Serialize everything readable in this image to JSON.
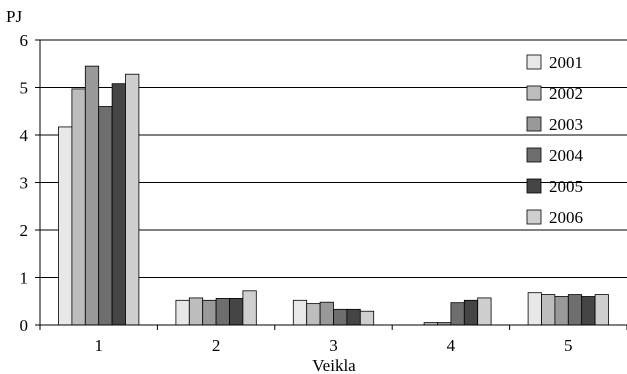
{
  "chart_data": {
    "type": "bar",
    "title": "",
    "ylabel": "PJ",
    "xlabel": "Veikla",
    "categories": [
      "1",
      "2",
      "3",
      "4",
      "5"
    ],
    "ylim": [
      0,
      6
    ],
    "yticks": [
      "0",
      "1",
      "2",
      "3",
      "4",
      "5",
      "6"
    ],
    "grid": "horizontal",
    "legend": "right",
    "series": [
      {
        "name": "2001",
        "values": [
          4.17,
          0.52,
          0.52,
          0.0,
          0.68
        ],
        "color": "#e8e8e8"
      },
      {
        "name": "2002",
        "values": [
          4.97,
          0.57,
          0.45,
          0.05,
          0.64
        ],
        "color": "#bdbdbd"
      },
      {
        "name": "2003",
        "values": [
          5.45,
          0.52,
          0.48,
          0.05,
          0.6
        ],
        "color": "#999999"
      },
      {
        "name": "2004",
        "values": [
          4.6,
          0.56,
          0.33,
          0.47,
          0.64
        ],
        "color": "#6e6e6e"
      },
      {
        "name": "2005",
        "values": [
          5.08,
          0.56,
          0.33,
          0.52,
          0.6
        ],
        "color": "#454545"
      },
      {
        "name": "2006",
        "values": [
          5.28,
          0.72,
          0.29,
          0.57,
          0.64
        ],
        "color": "#cfcfcf"
      }
    ]
  }
}
